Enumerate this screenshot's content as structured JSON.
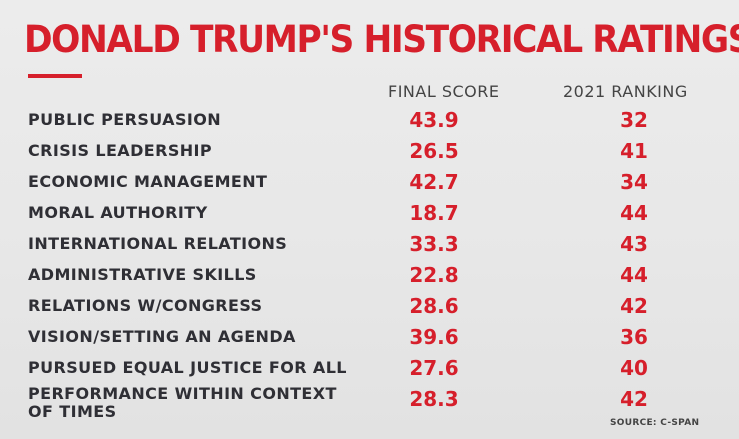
{
  "title": "DONALD TRUMP'S HISTORICAL RATINGS",
  "columns": {
    "score": "FINAL SCORE",
    "rank": "2021 RANKING"
  },
  "rows": [
    {
      "label": "PUBLIC PERSUASION",
      "score": "43.9",
      "rank": "32"
    },
    {
      "label": "CRISIS LEADERSHIP",
      "score": "26.5",
      "rank": "41"
    },
    {
      "label": "ECONOMIC MANAGEMENT",
      "score": "42.7",
      "rank": "34"
    },
    {
      "label": "MORAL AUTHORITY",
      "score": "18.7",
      "rank": "44"
    },
    {
      "label": "INTERNATIONAL RELATIONS",
      "score": "33.3",
      "rank": "43"
    },
    {
      "label": "ADMINISTRATIVE SKILLS",
      "score": "22.8",
      "rank": "44"
    },
    {
      "label": "RELATIONS W/CONGRESS",
      "score": "28.6",
      "rank": "42"
    },
    {
      "label": "VISION/SETTING AN AGENDA",
      "score": "39.6",
      "rank": "36"
    },
    {
      "label": "PURSUED EQUAL JUSTICE FOR ALL",
      "score": "27.6",
      "rank": "40"
    },
    {
      "label_line1": "PERFORMANCE WITHIN CONTEXT",
      "label_line2": "OF TIMES",
      "score": "28.3",
      "rank": "42"
    }
  ],
  "source": "SOURCE: C-SPAN",
  "colors": {
    "accent": "#d61f2b",
    "label_text": "#2f2f35",
    "background": "#e9e9e9"
  }
}
